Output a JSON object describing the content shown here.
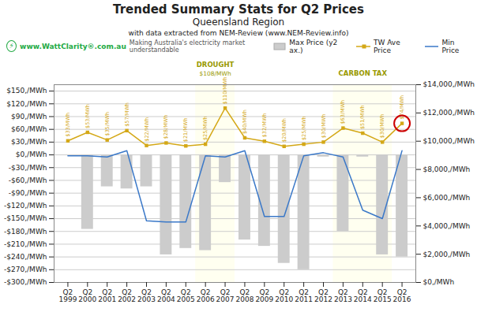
{
  "chart_data": {
    "type": "bar",
    "title": "Trended Summary Stats for Q2 Prices",
    "subtitle": "Queensland Region",
    "caption": "with data extracted from NEM-Review (www.NEM-Review.info)",
    "categories": [
      "Q2\n1999",
      "Q2\n2000",
      "Q2\n2001",
      "Q2\n2002",
      "Q2\n2003",
      "Q2\n2004",
      "Q2\n2005",
      "Q2\n2006",
      "Q2\n2007",
      "Q2\n2008",
      "Q2\n2009",
      "Q2\n2010",
      "Q2\n2011",
      "Q2\n2012",
      "Q2\n2013",
      "Q2\n2014",
      "Q2\n2015",
      "Q2\n2016"
    ],
    "series": [
      {
        "name": "Max Price (y2 ax.)",
        "type": "bar",
        "color": "#cccccc",
        "values": [
          0,
          -175,
          -75,
          -80,
          -75,
          -235,
          -220,
          -225,
          -65,
          -200,
          -215,
          -255,
          -270,
          -5,
          -180,
          -5,
          -235,
          -240
        ]
      },
      {
        "name": "TW Ave Price",
        "type": "line",
        "marker": "square",
        "color": "#d4a817",
        "data_labels": true,
        "values": [
          33,
          53,
          35,
          57,
          22,
          28,
          21,
          25,
          110,
          40,
          32,
          20,
          25,
          30,
          63,
          51,
          30,
          74
        ],
        "value_labels": [
          "$33/MWh",
          "$53/MWh",
          "$35/MWh",
          "$57/MWh",
          "$22/MWh",
          "$28/MWh",
          "$21/MWh",
          "$25/MWh",
          "$110/MWh",
          "$40/MWh",
          "$32/MWh",
          "$20/MWh",
          "$25/MWh",
          "$30/MWh",
          "$63/MWh",
          "$51/MWh",
          "$30/MWh",
          "$74/MWh"
        ]
      },
      {
        "name": "Min Price",
        "type": "line",
        "color": "#3a78c8",
        "values": [
          -2,
          -2,
          -5,
          10,
          -155,
          -158,
          -158,
          -2,
          -5,
          10,
          -145,
          -145,
          -2,
          5,
          -5,
          -130,
          -150,
          10
        ]
      }
    ],
    "ylim": [
      -300,
      165
    ],
    "yticks": [
      {
        "value": -300,
        "label": "-$300,/MWh"
      },
      {
        "value": -270,
        "label": "-$270,/MWh"
      },
      {
        "value": -240,
        "label": "-$240,/MWh"
      },
      {
        "value": -210,
        "label": "-$210,/MWh"
      },
      {
        "value": -180,
        "label": "-$180,/MWh"
      },
      {
        "value": -150,
        "label": "-$150,/MWh"
      },
      {
        "value": -120,
        "label": "-$120,/MWh"
      },
      {
        "value": -90,
        "label": "-$90,/MWh"
      },
      {
        "value": -60,
        "label": "-$60,/MWh"
      },
      {
        "value": -30,
        "label": "-$30,/MWh"
      },
      {
        "value": 0,
        "label": "$0,/MWh"
      },
      {
        "value": 30,
        "label": "$30,/MWh"
      },
      {
        "value": 60,
        "label": "$60,/MWh"
      },
      {
        "value": 90,
        "label": "$90,/MWh"
      },
      {
        "value": 120,
        "label": "$120,/MWh"
      },
      {
        "value": 150,
        "label": "$150,/MWh"
      }
    ],
    "y2lim": [
      0,
      14000
    ],
    "y2ticks": [
      {
        "value": 0,
        "label": "$0,/MWh"
      },
      {
        "value": 2000,
        "label": "$2,000,/MWh"
      },
      {
        "value": 4000,
        "label": "$4,000,/MWh"
      },
      {
        "value": 6000,
        "label": "$6,000,/MWh"
      },
      {
        "value": 8000,
        "label": "$8,000,/MWh"
      },
      {
        "value": 10000,
        "label": "$10,000,/MWh"
      },
      {
        "value": 12000,
        "label": "$12,000,/MWh"
      },
      {
        "value": 14000,
        "label": "$14,000,/MWh"
      }
    ],
    "grid": true,
    "legend": "top",
    "annotations": [
      {
        "type": "band",
        "label": "DROUGHT",
        "sublabel": "$108/MWh",
        "categories": [
          "Q2\n2006",
          "Q2\n2007"
        ],
        "color": "#fffff0",
        "text_color": "#999900"
      },
      {
        "type": "band",
        "label": "CARBON TAX",
        "categories": [
          "Q2\n2013",
          "Q2\n2014",
          "Q2\n2015"
        ],
        "color": "#fffff0",
        "text_color": "#999900"
      },
      {
        "type": "circle",
        "series": "TW Ave Price",
        "category": "Q2\n2016",
        "color": "#cc0000"
      },
      {
        "type": "logo",
        "icon": "⚡",
        "text": "www.WattClarity®.com.au",
        "subtext": "Making Australia's electricity market understandable",
        "color": "#22aa44"
      }
    ]
  }
}
